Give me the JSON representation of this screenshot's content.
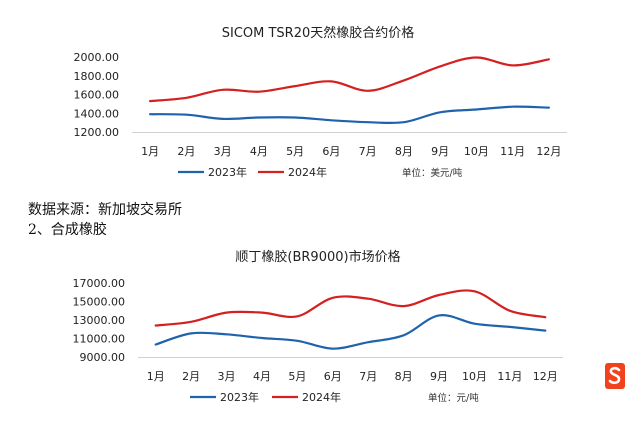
{
  "source_text": "数据来源：新加坡交易所",
  "section_text": "2、合成橡胶",
  "colors": {
    "series_2023": "#1f63ad",
    "series_2024": "#d42020",
    "logo": "#f0421c"
  },
  "logo_icon": "sohu-logo-icon",
  "chart_data": [
    {
      "type": "line",
      "title": "SICOM TSR20天然橡胶合约价格",
      "categories": [
        "1月",
        "2月",
        "3月",
        "4月",
        "5月",
        "6月",
        "7月",
        "8月",
        "9月",
        "10月",
        "11月",
        "12月"
      ],
      "y_ticks": [
        "1200.00",
        "1400.00",
        "1600.00",
        "1800.00",
        "2000.00"
      ],
      "ylim": [
        1200,
        2000
      ],
      "grid": false,
      "legend_position": "bottom",
      "unit": "单位：美元/吨",
      "series": [
        {
          "name": "2023年",
          "color": "#1f63ad",
          "values": [
            1390,
            1385,
            1340,
            1355,
            1355,
            1325,
            1305,
            1305,
            1410,
            1440,
            1470,
            1460
          ]
        },
        {
          "name": "2024年",
          "color": "#d42020",
          "values": [
            1530,
            1565,
            1650,
            1630,
            1690,
            1740,
            1640,
            1750,
            1900,
            1995,
            1910,
            1975
          ]
        }
      ]
    },
    {
      "type": "line",
      "title": "顺丁橡胶(BR9000)市场价格",
      "categories": [
        "1月",
        "2月",
        "3月",
        "4月",
        "5月",
        "6月",
        "7月",
        "8月",
        "9月",
        "10月",
        "11月",
        "12月"
      ],
      "y_ticks": [
        "9000.00",
        "11000.00",
        "13000.00",
        "15000.00",
        "17000.00"
      ],
      "ylim": [
        9000,
        17000
      ],
      "grid": false,
      "legend_position": "bottom",
      "unit": "单位：元/吨",
      "series": [
        {
          "name": "2023年",
          "color": "#1f63ad",
          "values": [
            10350,
            11550,
            11450,
            11050,
            10750,
            9900,
            10600,
            11350,
            13500,
            12600,
            12250,
            11850
          ]
        },
        {
          "name": "2024年",
          "color": "#d42020",
          "values": [
            12400,
            12800,
            13800,
            13800,
            13400,
            15400,
            15300,
            14500,
            15700,
            16100,
            14000,
            13300
          ]
        }
      ]
    }
  ]
}
